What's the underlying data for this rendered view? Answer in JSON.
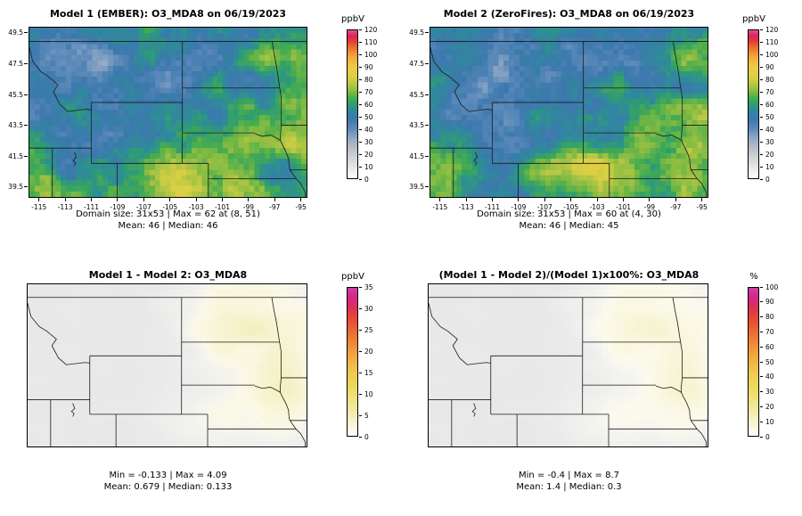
{
  "figure": {
    "background": "#ffffff",
    "panels": [
      {
        "title": "Model 1 (EMBER): O3_MDA8 on 06/19/2023",
        "stats_line1": "Domain size: 31x53 | Max = 62 at (8, 51)",
        "stats_line2": "Mean: 46 | Median: 46",
        "colorbar": {
          "title": "ppbV",
          "min": 0,
          "max": 120,
          "ticks": [
            0,
            10,
            20,
            30,
            40,
            50,
            60,
            70,
            80,
            90,
            100,
            110,
            120
          ],
          "stops": [
            [
              0.0,
              "#ffffff"
            ],
            [
              0.05,
              "#efefef"
            ],
            [
              0.12,
              "#d8d8d8"
            ],
            [
              0.19,
              "#bfc3c7"
            ],
            [
              0.27,
              "#93a9c3"
            ],
            [
              0.33,
              "#5f8cba"
            ],
            [
              0.4,
              "#3c78ae"
            ],
            [
              0.46,
              "#2f8a9b"
            ],
            [
              0.5,
              "#2f9d72"
            ],
            [
              0.54,
              "#46ab51"
            ],
            [
              0.58,
              "#7cb943"
            ],
            [
              0.63,
              "#b3c643"
            ],
            [
              0.68,
              "#d9cf45"
            ],
            [
              0.75,
              "#eccd42"
            ],
            [
              0.82,
              "#f0ab3c"
            ],
            [
              0.88,
              "#ea7134"
            ],
            [
              0.93,
              "#e23a31"
            ],
            [
              0.965,
              "#da2560"
            ],
            [
              1.0,
              "#e0519f"
            ]
          ]
        },
        "axes": {
          "x_ticks": [
            -115,
            -113,
            -111,
            -109,
            -107,
            -105,
            -103,
            -101,
            -99,
            -97,
            -95
          ],
          "y_ticks": [
            39.5,
            41.5,
            43.5,
            45.5,
            47.5,
            49.5
          ]
        },
        "map": {
          "kind": "conc",
          "seed": 3
        }
      },
      {
        "title": "Model 2 (ZeroFires): O3_MDA8 on 06/19/2023",
        "stats_line1": "Domain size: 31x53 | Max = 60 at (4, 30)",
        "stats_line2": "Mean: 46 | Median: 45",
        "colorbar": {
          "title": "ppbV",
          "min": 0,
          "max": 120,
          "ticks": [
            0,
            10,
            20,
            30,
            40,
            50,
            60,
            70,
            80,
            90,
            100,
            110,
            120
          ],
          "stops": [
            [
              0.0,
              "#ffffff"
            ],
            [
              0.05,
              "#efefef"
            ],
            [
              0.12,
              "#d8d8d8"
            ],
            [
              0.19,
              "#bfc3c7"
            ],
            [
              0.27,
              "#93a9c3"
            ],
            [
              0.33,
              "#5f8cba"
            ],
            [
              0.4,
              "#3c78ae"
            ],
            [
              0.46,
              "#2f8a9b"
            ],
            [
              0.5,
              "#2f9d72"
            ],
            [
              0.54,
              "#46ab51"
            ],
            [
              0.58,
              "#7cb943"
            ],
            [
              0.63,
              "#b3c643"
            ],
            [
              0.68,
              "#d9cf45"
            ],
            [
              0.75,
              "#eccd42"
            ],
            [
              0.82,
              "#f0ab3c"
            ],
            [
              0.88,
              "#ea7134"
            ],
            [
              0.93,
              "#e23a31"
            ],
            [
              0.965,
              "#da2560"
            ],
            [
              1.0,
              "#e0519f"
            ]
          ]
        },
        "axes": {
          "x_ticks": [
            -115,
            -113,
            -111,
            -109,
            -107,
            -105,
            -103,
            -101,
            -99,
            -97,
            -95
          ],
          "y_ticks": [
            39.5,
            41.5,
            43.5,
            45.5,
            47.5,
            49.5
          ]
        },
        "map": {
          "kind": "conc",
          "seed": 9
        }
      },
      {
        "title": "Model 1 - Model 2: O3_MDA8",
        "stats_line1": "Min = -0.133 | Max = 4.09",
        "stats_line2": "Mean: 0.679 | Median: 0.133",
        "colorbar": {
          "title": "ppbV",
          "min": 0,
          "max": 35,
          "ticks": [
            0,
            5,
            10,
            15,
            20,
            25,
            30,
            35
          ],
          "stops": [
            [
              0.0,
              "#ffffff"
            ],
            [
              0.08,
              "#f7f4d4"
            ],
            [
              0.18,
              "#f2e9a0"
            ],
            [
              0.3,
              "#eedd66"
            ],
            [
              0.43,
              "#f0c94b"
            ],
            [
              0.55,
              "#f0a53f"
            ],
            [
              0.67,
              "#ec7836"
            ],
            [
              0.78,
              "#e54e33"
            ],
            [
              0.87,
              "#dd2f55"
            ],
            [
              0.94,
              "#d4268d"
            ],
            [
              1.0,
              "#cc3f9e"
            ]
          ]
        },
        "map": {
          "kind": "diff"
        }
      },
      {
        "title": "(Model 1 - Model 2)/(Model 1)x100%: O3_MDA8",
        "stats_line1": "Min = -0.4 | Max = 8.7",
        "stats_line2": "Mean: 1.4 | Median: 0.3",
        "colorbar": {
          "title": "%",
          "min": 0,
          "max": 100,
          "ticks": [
            0,
            10,
            20,
            30,
            40,
            50,
            60,
            70,
            80,
            90,
            100
          ],
          "stops": [
            [
              0.0,
              "#ffffff"
            ],
            [
              0.08,
              "#f7f4d4"
            ],
            [
              0.18,
              "#f2e9a0"
            ],
            [
              0.3,
              "#eedd66"
            ],
            [
              0.43,
              "#f0c94b"
            ],
            [
              0.55,
              "#f0a53f"
            ],
            [
              0.67,
              "#ec7836"
            ],
            [
              0.78,
              "#e54e33"
            ],
            [
              0.87,
              "#dd2f55"
            ],
            [
              0.94,
              "#d4268d"
            ],
            [
              1.0,
              "#cc3f9e"
            ]
          ]
        },
        "map": {
          "kind": "pct"
        }
      }
    ]
  },
  "chart_data": [
    {
      "type": "heatmap",
      "title": "Model 1 (EMBER): O3_MDA8 on 06/19/2023",
      "units": "ppbV",
      "grid": "31x53",
      "x_ticks": [
        -115,
        -113,
        -111,
        -109,
        -107,
        -105,
        -103,
        -101,
        -99,
        -97,
        -95
      ],
      "y_ticks": [
        39.5,
        41.5,
        43.5,
        45.5,
        47.5,
        49.5
      ],
      "colorbar_range": [
        0,
        120
      ],
      "colorbar_ticks": [
        0,
        10,
        20,
        30,
        40,
        50,
        60,
        70,
        80,
        90,
        100,
        110,
        120
      ],
      "stats": {
        "domain_size": "31x53",
        "max": 62,
        "max_at_cell": [
          8,
          51
        ],
        "mean": 46,
        "median": 46
      }
    },
    {
      "type": "heatmap",
      "title": "Model 2 (ZeroFires): O3_MDA8 on 06/19/2023",
      "units": "ppbV",
      "grid": "31x53",
      "x_ticks": [
        -115,
        -113,
        -111,
        -109,
        -107,
        -105,
        -103,
        -101,
        -99,
        -97,
        -95
      ],
      "y_ticks": [
        39.5,
        41.5,
        43.5,
        45.5,
        47.5,
        49.5
      ],
      "colorbar_range": [
        0,
        120
      ],
      "colorbar_ticks": [
        0,
        10,
        20,
        30,
        40,
        50,
        60,
        70,
        80,
        90,
        100,
        110,
        120
      ],
      "stats": {
        "domain_size": "31x53",
        "max": 60,
        "max_at_cell": [
          4,
          30
        ],
        "mean": 46,
        "median": 45
      }
    },
    {
      "type": "heatmap",
      "title": "Model 1 - Model 2: O3_MDA8",
      "units": "ppbV",
      "colorbar_range": [
        0,
        35
      ],
      "colorbar_ticks": [
        0,
        5,
        10,
        15,
        20,
        25,
        30,
        35
      ],
      "stats": {
        "min": -0.133,
        "max": 4.09,
        "mean": 0.679,
        "median": 0.133
      }
    },
    {
      "type": "heatmap",
      "title": "(Model 1 - Model 2)/(Model 1)x100%: O3_MDA8",
      "units": "%",
      "colorbar_range": [
        0,
        100
      ],
      "colorbar_ticks": [
        0,
        10,
        20,
        30,
        40,
        50,
        60,
        70,
        80,
        90,
        100
      ],
      "stats": {
        "min": -0.4,
        "max": 8.7,
        "mean": 1.4,
        "median": 0.3
      }
    }
  ]
}
